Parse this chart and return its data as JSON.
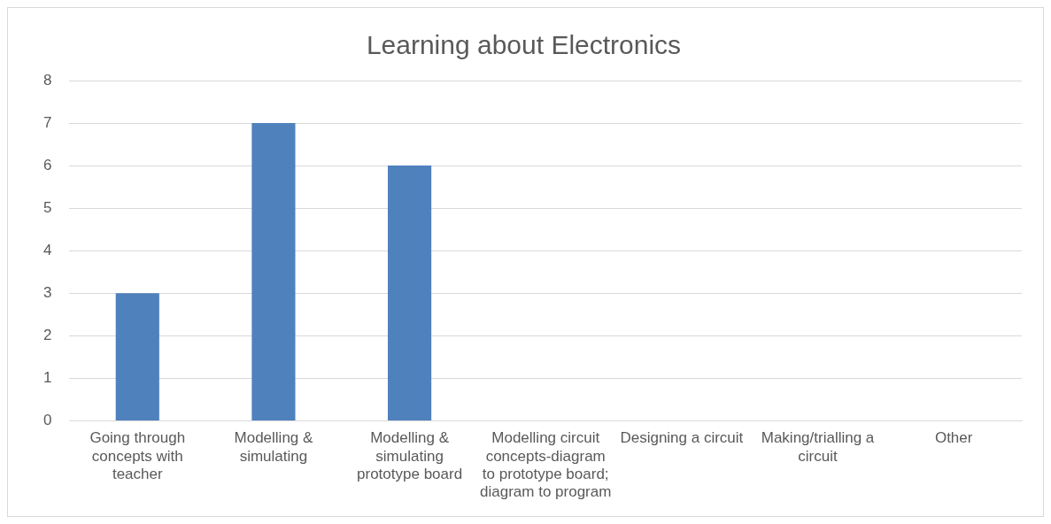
{
  "chart_data": {
    "type": "bar",
    "title": "Learning about Electronics",
    "categories": [
      "Going through concepts with teacher",
      "Modelling & simulating",
      "Modelling & simulating prototype board",
      "Modelling circuit concepts-diagram to prototype board; diagram to program",
      "Designing a circuit",
      "Making/trialling a circuit",
      "Other"
    ],
    "values": [
      3,
      7,
      6,
      0,
      0,
      0,
      0
    ],
    "color": "#4f81bd",
    "ylim": [
      0,
      8
    ],
    "yticks": [
      0,
      1,
      2,
      3,
      4,
      5,
      6,
      7,
      8
    ],
    "grid": "y",
    "legend": false
  }
}
